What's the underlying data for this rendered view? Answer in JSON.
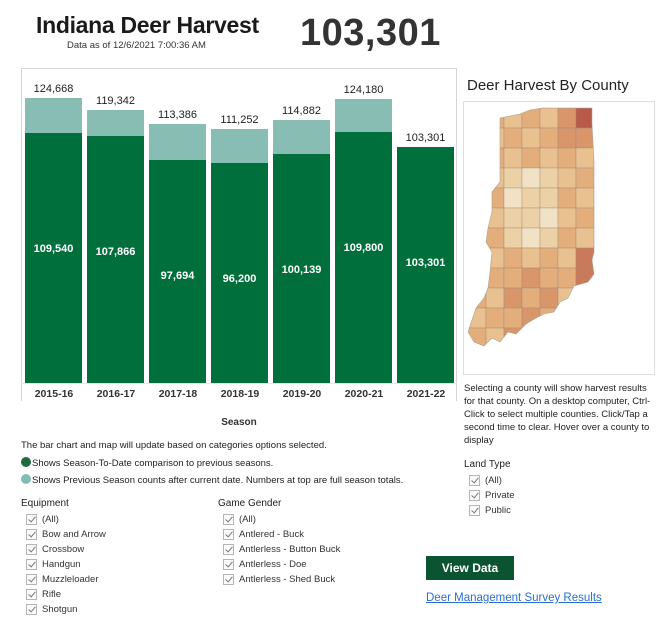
{
  "header": {
    "title": "Indiana Deer Harvest",
    "data_as_of_label": "Data as of",
    "data_as_of": "12/6/2021 7:00:36 AM",
    "total": "103,301"
  },
  "colors": {
    "season_to_date": "#006f3c",
    "previous_season_remainder": "#88bdb4",
    "button_bg": "#0b5432",
    "link": "#2a6fd1"
  },
  "chart_data": {
    "type": "bar",
    "stacked": true,
    "title": "",
    "xlabel": "Season",
    "ylabel": "",
    "categories": [
      "2015-16",
      "2016-17",
      "2017-18",
      "2018-19",
      "2019-20",
      "2020-21",
      "2021-22"
    ],
    "series": [
      {
        "name": "Season-To-Date",
        "color": "#006f3c",
        "values": [
          109540,
          107866,
          97694,
          96200,
          100139,
          109800,
          103301
        ]
      },
      {
        "name": "Previous Season counts after current date",
        "color": "#88bdb4",
        "values": [
          15128,
          11476,
          15692,
          15052,
          14743,
          14380,
          0
        ]
      }
    ],
    "totals": [
      124668,
      119342,
      113386,
      111252,
      114882,
      124180,
      103301
    ],
    "top_labels": [
      "124,668",
      "119,342",
      "113,386",
      "111,252",
      "114,882",
      "124,180",
      "103,301"
    ],
    "inner_labels": [
      "109,540",
      "107,866",
      "97,694",
      "96,200",
      "100,139",
      "109,800",
      "103,301"
    ],
    "ylim": [
      0,
      130000
    ],
    "grid": false
  },
  "notes": {
    "line1": "The bar chart and map will update based on categories options selected.",
    "line2": "Shows Season-To-Date comparison to previous seasons.",
    "line3": "Shows Previous Season counts after current date.  Numbers at top are full season totals."
  },
  "filters": {
    "equipment": {
      "title": "Equipment",
      "options": [
        "(All)",
        "Bow and Arrow",
        "Crossbow",
        "Handgun",
        "Muzzleloader",
        "Rifle",
        "Shotgun"
      ]
    },
    "game_gender": {
      "title": "Game Gender",
      "options": [
        "(All)",
        "Antlered - Buck",
        "Antlerless - Button Buck",
        "Antlerless - Doe",
        "Antlerless - Shed Buck"
      ]
    },
    "land_type": {
      "title": "Land Type",
      "options": [
        "(All)",
        "Private",
        "Public"
      ]
    }
  },
  "map": {
    "title": "Deer Harvest By County",
    "description": "Selecting a county will show harvest results for that county. On a desktop computer, Ctrl-Click to select multiple counties. Click/Tap a second time to clear. Hover over a county to display"
  },
  "actions": {
    "view_data": "View Data",
    "survey_link": "Deer Management Survey Results"
  }
}
